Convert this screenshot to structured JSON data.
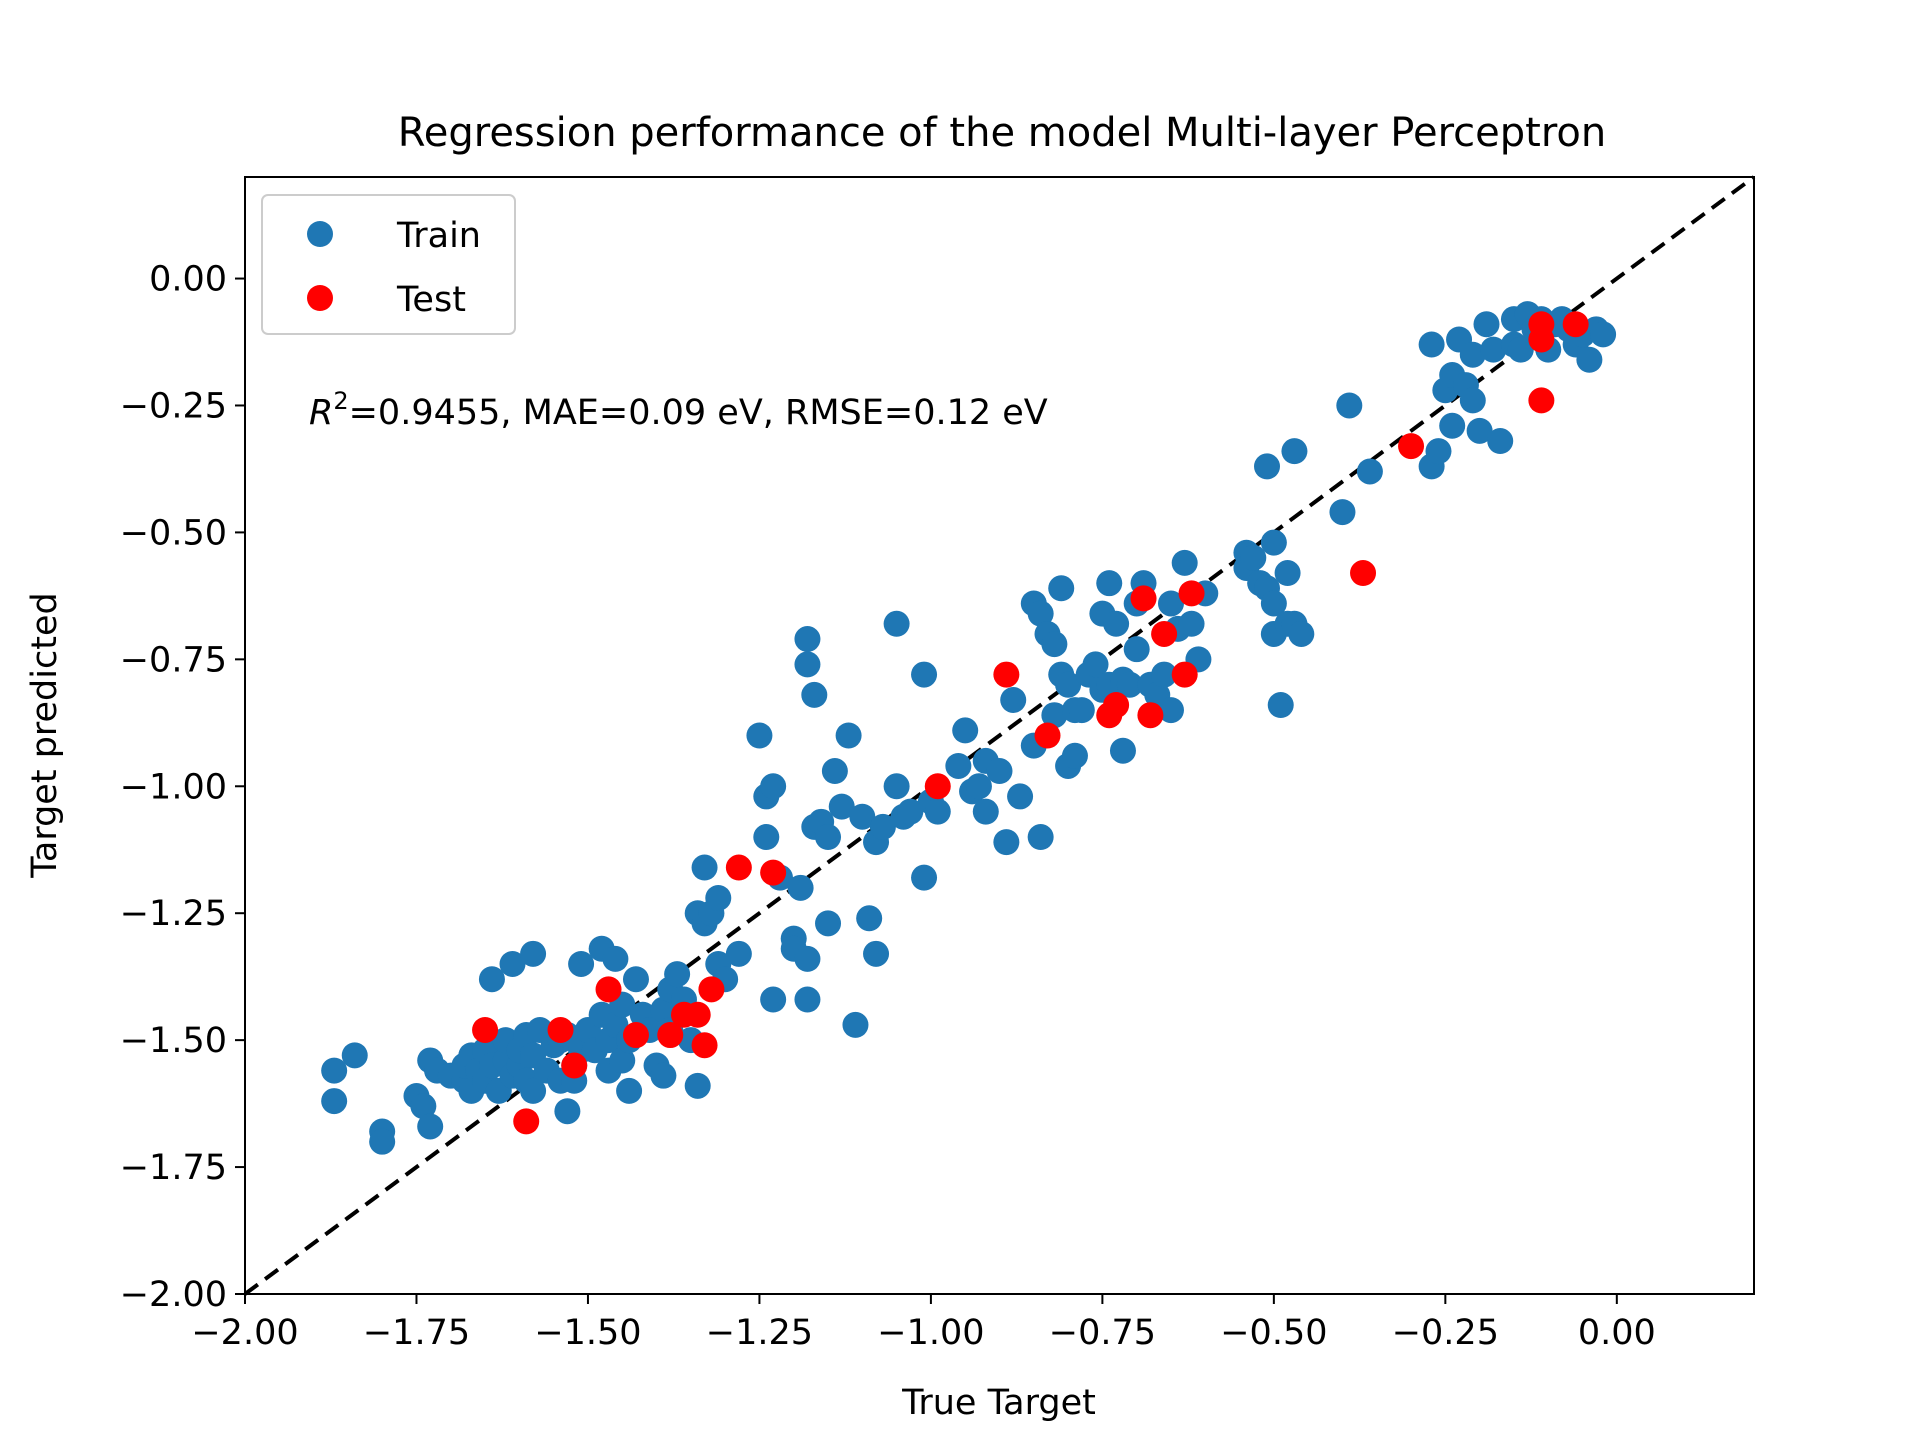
{
  "chart_data": {
    "type": "scatter",
    "title": "Regression performance of the model Multi-layer Perceptron",
    "xlabel": "True Target",
    "ylabel": "Target predicted",
    "xlim": [
      -2.0,
      0.2
    ],
    "ylim": [
      -2.0,
      0.2
    ],
    "xticks": [
      -2.0,
      -1.75,
      -1.5,
      -1.25,
      -1.0,
      -0.75,
      -0.5,
      -0.25,
      0.0
    ],
    "xtick_labels": [
      "−2.00",
      "−1.75",
      "−1.50",
      "−1.25",
      "−1.00",
      "−0.75",
      "−0.50",
      "−0.25",
      "0.00"
    ],
    "yticks": [
      -2.0,
      -1.75,
      -1.5,
      -1.25,
      -1.0,
      -0.75,
      -0.5,
      -0.25,
      0.0
    ],
    "ytick_labels": [
      "−2.00",
      "−1.75",
      "−1.50",
      "−1.25",
      "−1.00",
      "−0.75",
      "−0.50",
      "−0.25",
      "0.00"
    ],
    "grid": false,
    "legend_position": "top-left",
    "annotation": {
      "r2_symbol": "R",
      "r2_exponent": "2",
      "text": "=0.9455, MAE=0.09 eV, RMSE=0.12 eV"
    },
    "reference_line": {
      "style": "dashed",
      "color": "#000000",
      "from": [
        -2.0,
        -2.0
      ],
      "to": [
        0.2,
        0.2
      ]
    },
    "series": [
      {
        "name": "Train",
        "color": "#1f77b4",
        "points": [
          [
            -1.87,
            -1.56
          ],
          [
            -1.87,
            -1.62
          ],
          [
            -1.84,
            -1.53
          ],
          [
            -1.8,
            -1.68
          ],
          [
            -1.8,
            -1.7
          ],
          [
            -1.75,
            -1.61
          ],
          [
            -1.74,
            -1.63
          ],
          [
            -1.73,
            -1.54
          ],
          [
            -1.73,
            -1.67
          ],
          [
            -1.72,
            -1.56
          ],
          [
            -1.7,
            -1.57
          ],
          [
            -1.68,
            -1.58
          ],
          [
            -1.68,
            -1.55
          ],
          [
            -1.67,
            -1.6
          ],
          [
            -1.67,
            -1.53
          ],
          [
            -1.66,
            -1.56
          ],
          [
            -1.65,
            -1.58
          ],
          [
            -1.65,
            -1.52
          ],
          [
            -1.64,
            -1.55
          ],
          [
            -1.64,
            -1.38
          ],
          [
            -1.63,
            -1.6
          ],
          [
            -1.62,
            -1.54
          ],
          [
            -1.62,
            -1.5
          ],
          [
            -1.61,
            -1.57
          ],
          [
            -1.61,
            -1.35
          ],
          [
            -1.6,
            -1.55
          ],
          [
            -1.6,
            -1.52
          ],
          [
            -1.59,
            -1.49
          ],
          [
            -1.59,
            -1.58
          ],
          [
            -1.58,
            -1.33
          ],
          [
            -1.58,
            -1.53
          ],
          [
            -1.58,
            -1.6
          ],
          [
            -1.57,
            -1.48
          ],
          [
            -1.56,
            -1.56
          ],
          [
            -1.55,
            -1.51
          ],
          [
            -1.54,
            -1.58
          ],
          [
            -1.54,
            -1.5
          ],
          [
            -1.53,
            -1.64
          ],
          [
            -1.53,
            -1.49
          ],
          [
            -1.52,
            -1.55
          ],
          [
            -1.52,
            -1.58
          ],
          [
            -1.51,
            -1.52
          ],
          [
            -1.51,
            -1.35
          ],
          [
            -1.5,
            -1.48
          ],
          [
            -1.49,
            -1.52
          ],
          [
            -1.48,
            -1.32
          ],
          [
            -1.48,
            -1.45
          ],
          [
            -1.47,
            -1.5
          ],
          [
            -1.47,
            -1.56
          ],
          [
            -1.46,
            -1.34
          ],
          [
            -1.46,
            -1.47
          ],
          [
            -1.45,
            -1.54
          ],
          [
            -1.45,
            -1.43
          ],
          [
            -1.44,
            -1.5
          ],
          [
            -1.44,
            -1.6
          ],
          [
            -1.43,
            -1.38
          ],
          [
            -1.42,
            -1.45
          ],
          [
            -1.41,
            -1.48
          ],
          [
            -1.4,
            -1.55
          ],
          [
            -1.39,
            -1.57
          ],
          [
            -1.39,
            -1.44
          ],
          [
            -1.38,
            -1.4
          ],
          [
            -1.38,
            -1.48
          ],
          [
            -1.37,
            -1.37
          ],
          [
            -1.36,
            -1.42
          ],
          [
            -1.35,
            -1.5
          ],
          [
            -1.34,
            -1.59
          ],
          [
            -1.34,
            -1.25
          ],
          [
            -1.33,
            -1.16
          ],
          [
            -1.33,
            -1.27
          ],
          [
            -1.32,
            -1.25
          ],
          [
            -1.31,
            -1.22
          ],
          [
            -1.31,
            -1.35
          ],
          [
            -1.3,
            -1.38
          ],
          [
            -1.28,
            -1.33
          ],
          [
            -1.25,
            -0.9
          ],
          [
            -1.24,
            -1.02
          ],
          [
            -1.24,
            -1.1
          ],
          [
            -1.23,
            -1.0
          ],
          [
            -1.23,
            -1.42
          ],
          [
            -1.22,
            -1.18
          ],
          [
            -1.2,
            -1.3
          ],
          [
            -1.2,
            -1.32
          ],
          [
            -1.19,
            -1.2
          ],
          [
            -1.18,
            -0.71
          ],
          [
            -1.18,
            -0.76
          ],
          [
            -1.18,
            -1.34
          ],
          [
            -1.18,
            -1.42
          ],
          [
            -1.17,
            -0.82
          ],
          [
            -1.17,
            -1.08
          ],
          [
            -1.16,
            -1.07
          ],
          [
            -1.15,
            -1.1
          ],
          [
            -1.15,
            -1.27
          ],
          [
            -1.14,
            -0.97
          ],
          [
            -1.13,
            -1.04
          ],
          [
            -1.12,
            -0.9
          ],
          [
            -1.11,
            -1.47
          ],
          [
            -1.1,
            -1.06
          ],
          [
            -1.08,
            -1.11
          ],
          [
            -1.08,
            -1.33
          ],
          [
            -1.09,
            -1.26
          ],
          [
            -1.07,
            -1.08
          ],
          [
            -1.05,
            -1.0
          ],
          [
            -1.05,
            -0.68
          ],
          [
            -1.04,
            -1.06
          ],
          [
            -1.03,
            -1.05
          ],
          [
            -1.01,
            -1.18
          ],
          [
            -1.01,
            -0.78
          ],
          [
            -1.0,
            -1.03
          ],
          [
            -0.99,
            -1.05
          ],
          [
            -0.96,
            -0.96
          ],
          [
            -0.95,
            -0.89
          ],
          [
            -0.94,
            -1.01
          ],
          [
            -0.93,
            -1.0
          ],
          [
            -0.92,
            -1.05
          ],
          [
            -0.92,
            -0.95
          ],
          [
            -0.9,
            -0.97
          ],
          [
            -0.89,
            -1.11
          ],
          [
            -0.88,
            -0.83
          ],
          [
            -0.87,
            -1.02
          ],
          [
            -0.85,
            -0.64
          ],
          [
            -0.85,
            -0.92
          ],
          [
            -0.84,
            -1.1
          ],
          [
            -0.84,
            -0.66
          ],
          [
            -0.83,
            -0.7
          ],
          [
            -0.82,
            -0.72
          ],
          [
            -0.82,
            -0.86
          ],
          [
            -0.81,
            -0.78
          ],
          [
            -0.81,
            -0.61
          ],
          [
            -0.8,
            -0.8
          ],
          [
            -0.8,
            -0.96
          ],
          [
            -0.79,
            -0.85
          ],
          [
            -0.79,
            -0.94
          ],
          [
            -0.78,
            -0.85
          ],
          [
            -0.77,
            -0.78
          ],
          [
            -0.76,
            -0.76
          ],
          [
            -0.75,
            -0.66
          ],
          [
            -0.75,
            -0.81
          ],
          [
            -0.74,
            -0.8
          ],
          [
            -0.74,
            -0.6
          ],
          [
            -0.73,
            -0.68
          ],
          [
            -0.72,
            -0.93
          ],
          [
            -0.72,
            -0.79
          ],
          [
            -0.71,
            -0.8
          ],
          [
            -0.7,
            -0.73
          ],
          [
            -0.7,
            -0.64
          ],
          [
            -0.69,
            -0.6
          ],
          [
            -0.68,
            -0.8
          ],
          [
            -0.67,
            -0.82
          ],
          [
            -0.66,
            -0.78
          ],
          [
            -0.65,
            -0.64
          ],
          [
            -0.65,
            -0.85
          ],
          [
            -0.64,
            -0.69
          ],
          [
            -0.63,
            -0.56
          ],
          [
            -0.62,
            -0.68
          ],
          [
            -0.61,
            -0.75
          ],
          [
            -0.6,
            -0.62
          ],
          [
            -0.54,
            -0.54
          ],
          [
            -0.54,
            -0.57
          ],
          [
            -0.53,
            -0.55
          ],
          [
            -0.52,
            -0.6
          ],
          [
            -0.51,
            -0.37
          ],
          [
            -0.51,
            -0.61
          ],
          [
            -0.5,
            -0.52
          ],
          [
            -0.5,
            -0.64
          ],
          [
            -0.5,
            -0.7
          ],
          [
            -0.49,
            -0.84
          ],
          [
            -0.48,
            -0.68
          ],
          [
            -0.48,
            -0.58
          ],
          [
            -0.47,
            -0.34
          ],
          [
            -0.47,
            -0.68
          ],
          [
            -0.46,
            -0.7
          ],
          [
            -0.4,
            -0.46
          ],
          [
            -0.39,
            -0.25
          ],
          [
            -0.36,
            -0.38
          ],
          [
            -0.27,
            -0.37
          ],
          [
            -0.27,
            -0.13
          ],
          [
            -0.26,
            -0.34
          ],
          [
            -0.25,
            -0.22
          ],
          [
            -0.24,
            -0.29
          ],
          [
            -0.24,
            -0.19
          ],
          [
            -0.23,
            -0.12
          ],
          [
            -0.22,
            -0.21
          ],
          [
            -0.21,
            -0.15
          ],
          [
            -0.21,
            -0.24
          ],
          [
            -0.2,
            -0.3
          ],
          [
            -0.19,
            -0.09
          ],
          [
            -0.18,
            -0.14
          ],
          [
            -0.17,
            -0.32
          ],
          [
            -0.15,
            -0.13
          ],
          [
            -0.15,
            -0.08
          ],
          [
            -0.14,
            -0.14
          ],
          [
            -0.13,
            -0.07
          ],
          [
            -0.12,
            -0.1
          ],
          [
            -0.11,
            -0.12
          ],
          [
            -0.11,
            -0.08
          ],
          [
            -0.1,
            -0.14
          ],
          [
            -0.09,
            -0.09
          ],
          [
            -0.08,
            -0.08
          ],
          [
            -0.07,
            -0.1
          ],
          [
            -0.06,
            -0.13
          ],
          [
            -0.05,
            -0.11
          ],
          [
            -0.04,
            -0.16
          ],
          [
            -0.03,
            -0.1
          ],
          [
            -0.02,
            -0.11
          ]
        ]
      },
      {
        "name": "Test",
        "color": "#ff0000",
        "points": [
          [
            -1.65,
            -1.48
          ],
          [
            -1.59,
            -1.66
          ],
          [
            -1.54,
            -1.48
          ],
          [
            -1.52,
            -1.55
          ],
          [
            -1.47,
            -1.4
          ],
          [
            -1.43,
            -1.49
          ],
          [
            -1.38,
            -1.49
          ],
          [
            -1.36,
            -1.45
          ],
          [
            -1.34,
            -1.45
          ],
          [
            -1.33,
            -1.51
          ],
          [
            -1.32,
            -1.4
          ],
          [
            -1.28,
            -1.16
          ],
          [
            -1.23,
            -1.17
          ],
          [
            -0.99,
            -1.0
          ],
          [
            -0.89,
            -0.78
          ],
          [
            -0.83,
            -0.9
          ],
          [
            -0.74,
            -0.86
          ],
          [
            -0.73,
            -0.84
          ],
          [
            -0.68,
            -0.86
          ],
          [
            -0.69,
            -0.63
          ],
          [
            -0.66,
            -0.7
          ],
          [
            -0.63,
            -0.78
          ],
          [
            -0.62,
            -0.62
          ],
          [
            -0.37,
            -0.58
          ],
          [
            -0.3,
            -0.33
          ],
          [
            -0.11,
            -0.09
          ],
          [
            -0.11,
            -0.12
          ],
          [
            -0.11,
            -0.24
          ],
          [
            -0.06,
            -0.09
          ]
        ]
      }
    ]
  }
}
